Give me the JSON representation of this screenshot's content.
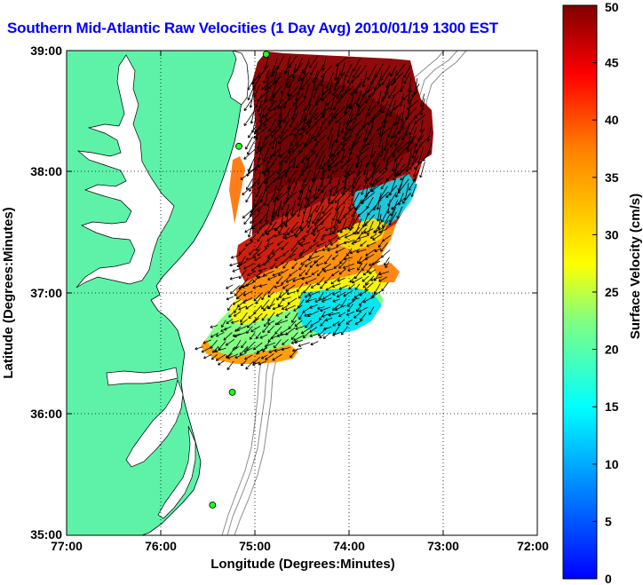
{
  "title": "Southern Mid-Atlantic Raw Velocities (1 Day Avg) 2010/01/19 1300 EST",
  "xaxis": {
    "label": "Longitude (Degrees:Minutes)",
    "ticks": [
      "77:00",
      "76:00",
      "75:00",
      "74:00",
      "73:00",
      "72:00"
    ]
  },
  "yaxis": {
    "label": "Latitude (Degrees:Minutes)",
    "ticks": [
      "39:00",
      "38:00",
      "37:00",
      "36:00",
      "35:00"
    ]
  },
  "colorbar": {
    "label": "Surface Velocity (cm/s)",
    "ticks": [
      "50",
      "45",
      "40",
      "35",
      "30",
      "25",
      "20",
      "15",
      "10",
      "5",
      "0"
    ],
    "range": [
      0,
      50
    ],
    "colormap": "jet"
  },
  "map_extent": {
    "lon": [
      -77,
      -72
    ],
    "lat": [
      35,
      39
    ]
  },
  "colors": {
    "land": "#5ef2a8",
    "coast_line": "#000000",
    "bathymetry": "#8c8c8c",
    "station": "#1fff1f",
    "title": "#0000ff"
  },
  "stations": [
    {
      "lon": -74.88,
      "lat": 38.97
    },
    {
      "lon": -75.17,
      "lat": 38.21
    },
    {
      "lon": -75.24,
      "lat": 36.18
    },
    {
      "lon": -75.45,
      "lat": 35.25
    }
  ]
}
